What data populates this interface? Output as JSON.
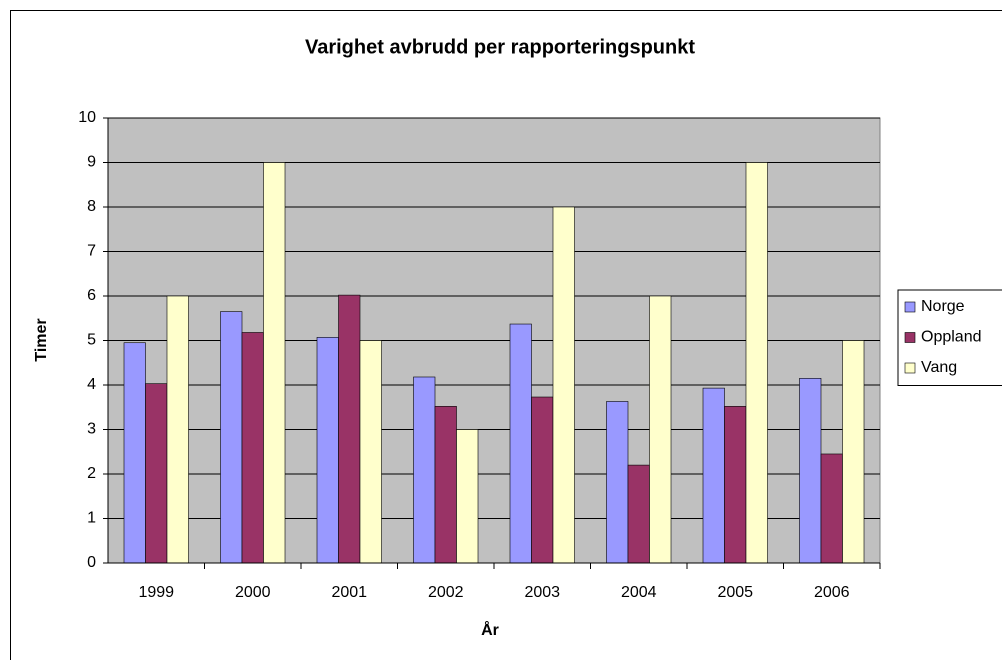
{
  "chart_data": {
    "type": "bar",
    "title": "Varighet avbrudd per rapporteringspunkt",
    "x_label": "År",
    "y_label": "Timer",
    "categories": [
      "1999",
      "2000",
      "2001",
      "2002",
      "2003",
      "2004",
      "2005",
      "2006"
    ],
    "series": [
      {
        "name": "Norge",
        "color": "#9999ff",
        "values": [
          4.95,
          5.65,
          5.07,
          4.18,
          5.37,
          3.63,
          3.93,
          4.15
        ]
      },
      {
        "name": "Oppland",
        "color": "#993366",
        "values": [
          4.03,
          5.18,
          6.02,
          3.52,
          3.73,
          2.2,
          3.52,
          2.45
        ]
      },
      {
        "name": "Vang",
        "color": "#ffffcc",
        "values": [
          6,
          9,
          5,
          3,
          8,
          6,
          9,
          5
        ]
      }
    ],
    "ylim": [
      0,
      10
    ],
    "yticks": [
      0,
      1,
      2,
      3,
      4,
      5,
      6,
      7,
      8,
      9,
      10
    ],
    "grid": true,
    "legend": "right"
  }
}
